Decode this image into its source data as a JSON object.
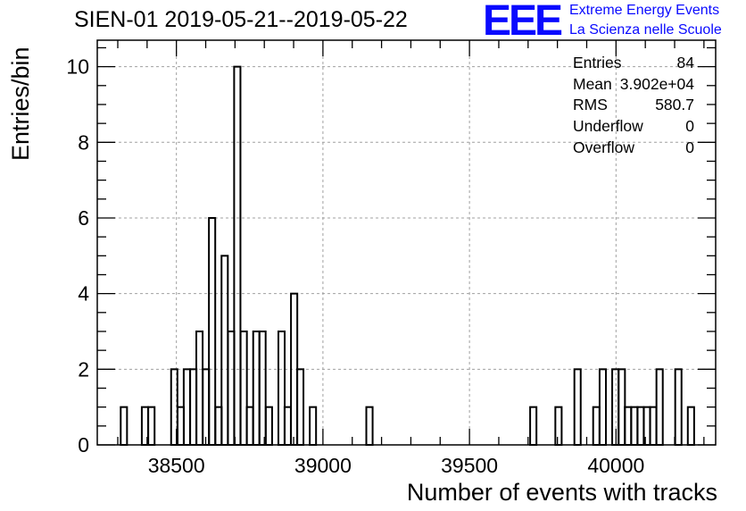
{
  "chart_data": {
    "type": "histogram",
    "title": "SIEN-01 2019-05-21--2019-05-22",
    "xlabel": "Number of events with tracks",
    "ylabel": "Entries/bin",
    "xlim": [
      38230,
      40340
    ],
    "ylim": [
      0,
      10.7
    ],
    "xticks": [
      38500,
      39000,
      39500,
      40000
    ],
    "yticks": [
      0,
      2,
      4,
      6,
      8,
      10
    ],
    "grid": true,
    "bin_width": 21.5,
    "bins": [
      {
        "x": 38310,
        "y": 1
      },
      {
        "x": 38382,
        "y": 1
      },
      {
        "x": 38404,
        "y": 1
      },
      {
        "x": 38482,
        "y": 2
      },
      {
        "x": 38504,
        "y": 1
      },
      {
        "x": 38525,
        "y": 2
      },
      {
        "x": 38547,
        "y": 2
      },
      {
        "x": 38568,
        "y": 3
      },
      {
        "x": 38590,
        "y": 2
      },
      {
        "x": 38611,
        "y": 6
      },
      {
        "x": 38633,
        "y": 1
      },
      {
        "x": 38654,
        "y": 5
      },
      {
        "x": 38676,
        "y": 3
      },
      {
        "x": 38697,
        "y": 10
      },
      {
        "x": 38719,
        "y": 3
      },
      {
        "x": 38740,
        "y": 1
      },
      {
        "x": 38762,
        "y": 3
      },
      {
        "x": 38783,
        "y": 3
      },
      {
        "x": 38805,
        "y": 1
      },
      {
        "x": 38848,
        "y": 3
      },
      {
        "x": 38869,
        "y": 1
      },
      {
        "x": 38891,
        "y": 4
      },
      {
        "x": 38912,
        "y": 2
      },
      {
        "x": 38955,
        "y": 1
      },
      {
        "x": 39148,
        "y": 1
      },
      {
        "x": 39707,
        "y": 1
      },
      {
        "x": 39793,
        "y": 1
      },
      {
        "x": 39858,
        "y": 2
      },
      {
        "x": 39922,
        "y": 1
      },
      {
        "x": 39944,
        "y": 2
      },
      {
        "x": 39987,
        "y": 2
      },
      {
        "x": 40009,
        "y": 2
      },
      {
        "x": 40030,
        "y": 1
      },
      {
        "x": 40052,
        "y": 1
      },
      {
        "x": 40073,
        "y": 1
      },
      {
        "x": 40095,
        "y": 1
      },
      {
        "x": 40116,
        "y": 1
      },
      {
        "x": 40138,
        "y": 2
      },
      {
        "x": 40202,
        "y": 2
      },
      {
        "x": 40245,
        "y": 1
      }
    ]
  },
  "stats": [
    {
      "label": "Entries",
      "value": "84"
    },
    {
      "label": "Mean",
      "value": "3.902e+04"
    },
    {
      "label": "RMS",
      "value": "580.7"
    },
    {
      "label": "Underflow",
      "value": "0"
    },
    {
      "label": "Overflow",
      "value": "0"
    }
  ],
  "logo": {
    "mark": "EEE",
    "line1": "Extreme Energy Events",
    "line2": "La Scienza nelle Scuole",
    "color": "#0a0aff"
  }
}
